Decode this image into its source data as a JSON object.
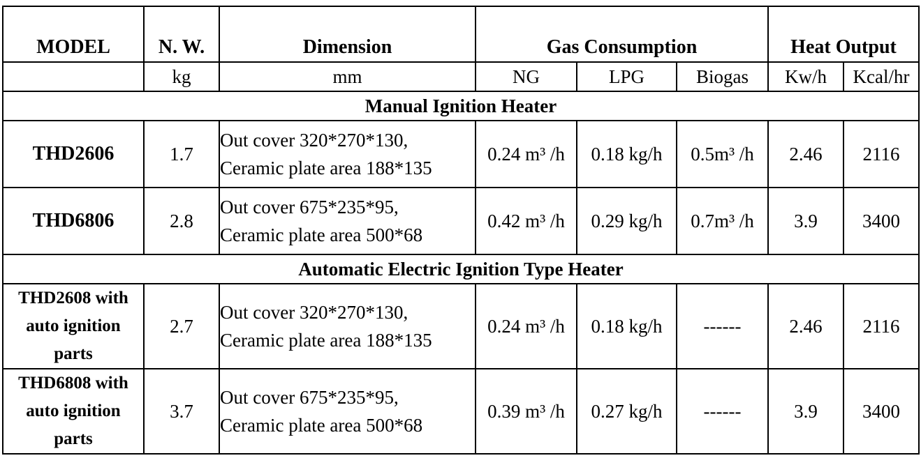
{
  "header": {
    "columns": [
      "MODEL",
      "N. W.",
      "Dimension",
      "Gas Consumption",
      "Heat Output"
    ],
    "units": [
      "kg",
      "mm",
      "NG",
      "LPG",
      "Biogas",
      "Kw/h",
      "Kcal/hr"
    ]
  },
  "sections": [
    {
      "title": "Manual Ignition Heater",
      "rows": [
        [
          "THD2606",
          "1.7",
          [
            "Out cover 320*270*130,",
            "Ceramic plate area 188*135"
          ],
          "0.24 m³ /h",
          "0.18 kg/h",
          "0.5m³ /h",
          "2.46",
          "2116"
        ],
        [
          "THD6806",
          "2.8",
          [
            "Out cover 675*235*95,",
            "Ceramic plate area 500*68"
          ],
          "0.42 m³ /h",
          "0.29 kg/h",
          "0.7m³ /h",
          "3.9",
          "3400"
        ]
      ]
    },
    {
      "title": "Automatic Electric Ignition Type Heater",
      "rows": [
        [
          "THD2608 with auto ignition parts",
          "2.7",
          [
            "Out cover 320*270*130,",
            "Ceramic plate area 188*135"
          ],
          "0.24 m³ /h",
          "0.18 kg/h",
          "------",
          "2.46",
          "2116"
        ],
        [
          "THD6808 with auto ignition parts",
          "3.7",
          [
            "Out cover 675*235*95,",
            "Ceramic plate area 500*68"
          ],
          "0.39 m³ /h",
          "0.27 kg/h",
          "------",
          "3.9",
          "3400"
        ]
      ]
    }
  ]
}
